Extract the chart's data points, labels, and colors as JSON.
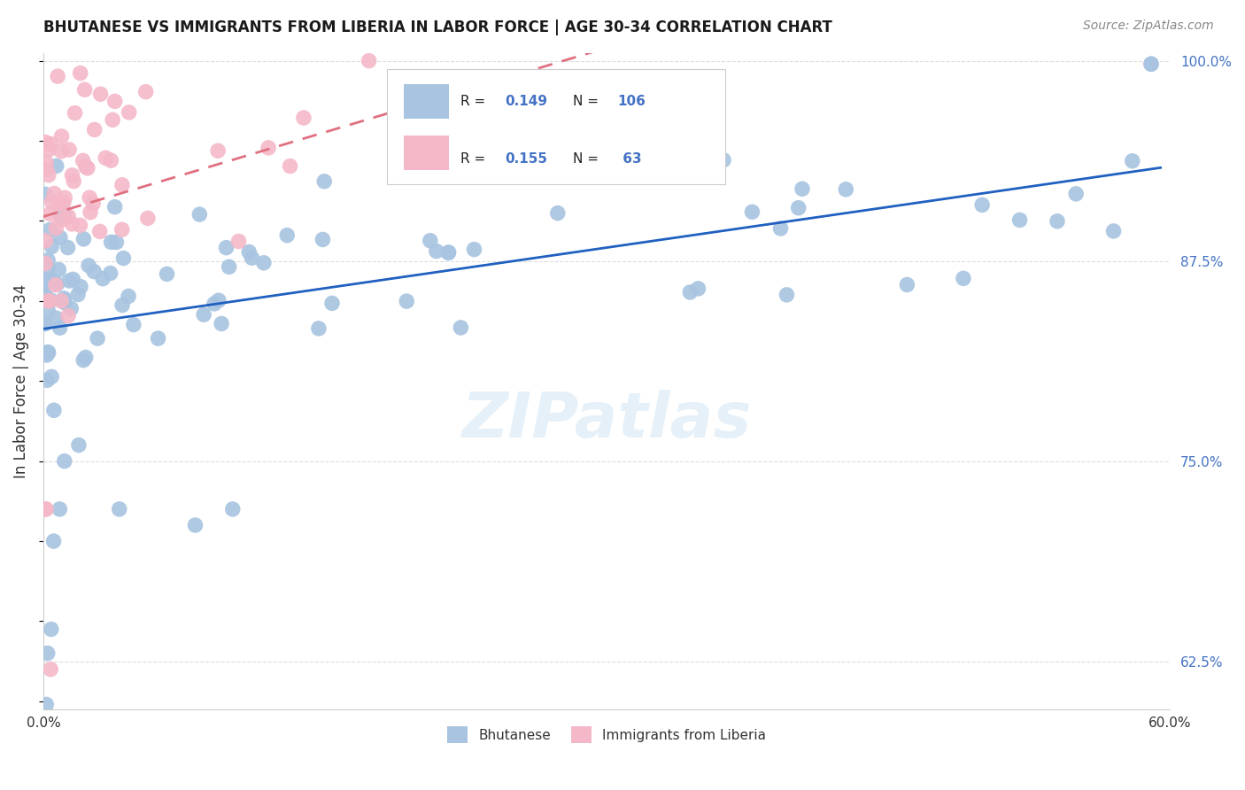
{
  "title": "BHUTANESE VS IMMIGRANTS FROM LIBERIA IN LABOR FORCE | AGE 30-34 CORRELATION CHART",
  "source": "Source: ZipAtlas.com",
  "ylabel": "In Labor Force | Age 30-34",
  "xmin": 0.0,
  "xmax": 0.6,
  "ymin": 0.595,
  "ymax": 1.005,
  "legend_blue_label": "Bhutanese",
  "legend_pink_label": "Immigrants from Liberia",
  "R_blue": "0.149",
  "N_blue": "106",
  "R_pink": "0.155",
  "N_pink": "63",
  "blue_color": "#a8c4e0",
  "pink_color": "#f4b8c8",
  "blue_line_color": "#2060c0",
  "pink_line_color": "#e07080",
  "background_color": "#ffffff",
  "watermark_text": "ZIPatlas",
  "grid_color": "#dddddd",
  "right_tick_color": "#4472c4",
  "title_color": "#1a1a1a",
  "source_color": "#888888"
}
